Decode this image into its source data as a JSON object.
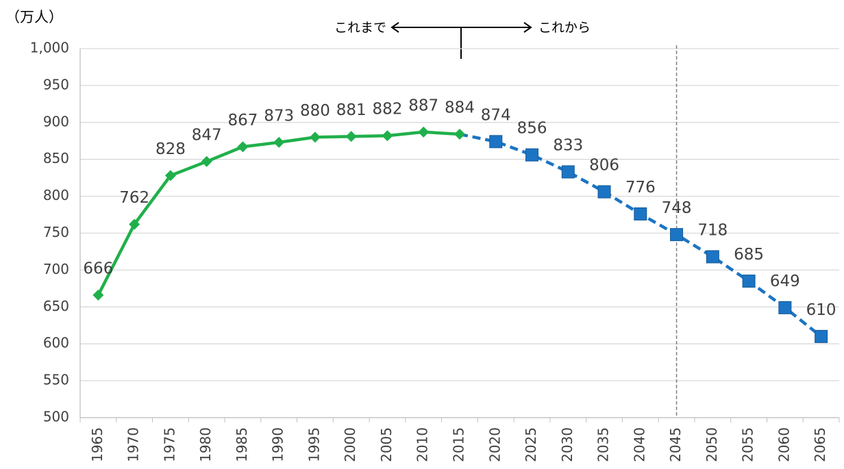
{
  "chart_data": {
    "type": "line",
    "y_unit_label": "（万人）",
    "annotations": [
      "これまで",
      "これから"
    ],
    "reference_line_x": "2045",
    "categories": [
      "1965",
      "1970",
      "1975",
      "1980",
      "1985",
      "1990",
      "1995",
      "2000",
      "2005",
      "2010",
      "2015",
      "2020",
      "2025",
      "2030",
      "2035",
      "2040",
      "2045",
      "2050",
      "2055",
      "2060",
      "2065"
    ],
    "series": [
      {
        "color": "#20b04b",
        "marker": "diamond",
        "dashed": false,
        "values": [
          666,
          762,
          828,
          847,
          867,
          873,
          880,
          881,
          882,
          887,
          884,
          null,
          null,
          null,
          null,
          null,
          null,
          null,
          null,
          null,
          null
        ]
      },
      {
        "color": "#1c74c4",
        "marker": "square",
        "dashed": true,
        "values": [
          null,
          null,
          null,
          null,
          null,
          null,
          null,
          null,
          null,
          null,
          884,
          874,
          856,
          833,
          806,
          776,
          748,
          718,
          685,
          649,
          610
        ]
      }
    ],
    "ylim": [
      500,
      1000
    ],
    "yticks": [
      500,
      550,
      600,
      650,
      700,
      750,
      800,
      850,
      900,
      950,
      {
        "value": 1000,
        "label": "1,000"
      }
    ],
    "grid": true
  }
}
